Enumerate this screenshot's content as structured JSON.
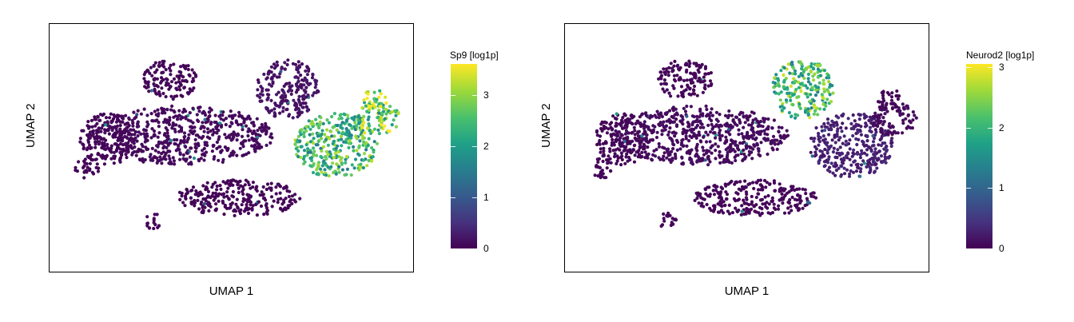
{
  "chart_data": [
    {
      "type": "scatter",
      "xlabel": "UMAP 1",
      "ylabel": "UMAP 2",
      "legend_title": "Sp9 [log1p]",
      "legend_ticks": [
        0,
        1,
        2,
        3
      ],
      "color_range": [
        0,
        3.6
      ],
      "colormap": "viridis",
      "legend_position": "right",
      "grid": false,
      "xlim": [
        0,
        10
      ],
      "ylim": [
        0,
        7
      ],
      "clusters": [
        {
          "cx": 5.2,
          "cy": 2.0,
          "rx": 1.8,
          "ry": 0.55,
          "value": 0.05
        },
        {
          "cx": 3.6,
          "cy": 3.9,
          "rx": 2.6,
          "ry": 0.9,
          "value": 0.1
        },
        {
          "cx": 1.4,
          "cy": 3.8,
          "rx": 0.8,
          "ry": 0.8,
          "value": 0.05
        },
        {
          "cx": 3.2,
          "cy": 5.6,
          "rx": 0.8,
          "ry": 0.6,
          "value": 0.05
        },
        {
          "cx": 6.6,
          "cy": 5.3,
          "rx": 0.9,
          "ry": 0.9,
          "value": 0.2
        },
        {
          "cx": 8.0,
          "cy": 3.6,
          "rx": 1.2,
          "ry": 1.0,
          "value": 2.6
        },
        {
          "cx": 9.2,
          "cy": 4.4,
          "rx": 0.7,
          "ry": 0.5,
          "value": 3.0
        },
        {
          "cx": 9.1,
          "cy": 5.0,
          "rx": 0.4,
          "ry": 0.3,
          "value": 3.4
        },
        {
          "cx": 0.8,
          "cy": 2.9,
          "rx": 0.35,
          "ry": 0.3,
          "value": 0.05
        },
        {
          "cx": 2.7,
          "cy": 1.3,
          "rx": 0.25,
          "ry": 0.25,
          "value": 0.05
        }
      ]
    },
    {
      "type": "scatter",
      "xlabel": "UMAP 1",
      "ylabel": "UMAP 2",
      "legend_title": "Neurod2 [log1p]",
      "legend_ticks": [
        0,
        1,
        2,
        3
      ],
      "color_range": [
        0,
        3.05
      ],
      "colormap": "viridis",
      "legend_position": "right",
      "grid": false,
      "xlim": [
        0,
        10
      ],
      "ylim": [
        0,
        7
      ],
      "clusters": [
        {
          "cx": 5.2,
          "cy": 2.0,
          "rx": 1.8,
          "ry": 0.55,
          "value": 0.05
        },
        {
          "cx": 3.6,
          "cy": 3.9,
          "rx": 2.6,
          "ry": 0.9,
          "value": 0.1
        },
        {
          "cx": 1.4,
          "cy": 3.8,
          "rx": 0.8,
          "ry": 0.8,
          "value": 0.05
        },
        {
          "cx": 3.2,
          "cy": 5.6,
          "rx": 0.8,
          "ry": 0.6,
          "value": 0.05
        },
        {
          "cx": 6.6,
          "cy": 5.3,
          "rx": 0.9,
          "ry": 0.9,
          "value": 2.3
        },
        {
          "cx": 8.0,
          "cy": 3.6,
          "rx": 1.2,
          "ry": 1.0,
          "value": 0.3
        },
        {
          "cx": 9.2,
          "cy": 4.4,
          "rx": 0.7,
          "ry": 0.5,
          "value": 0.1
        },
        {
          "cx": 9.1,
          "cy": 5.0,
          "rx": 0.4,
          "ry": 0.3,
          "value": 0.05
        },
        {
          "cx": 0.8,
          "cy": 2.9,
          "rx": 0.35,
          "ry": 0.3,
          "value": 0.05
        },
        {
          "cx": 2.7,
          "cy": 1.3,
          "rx": 0.25,
          "ry": 0.25,
          "value": 0.05
        }
      ]
    }
  ]
}
